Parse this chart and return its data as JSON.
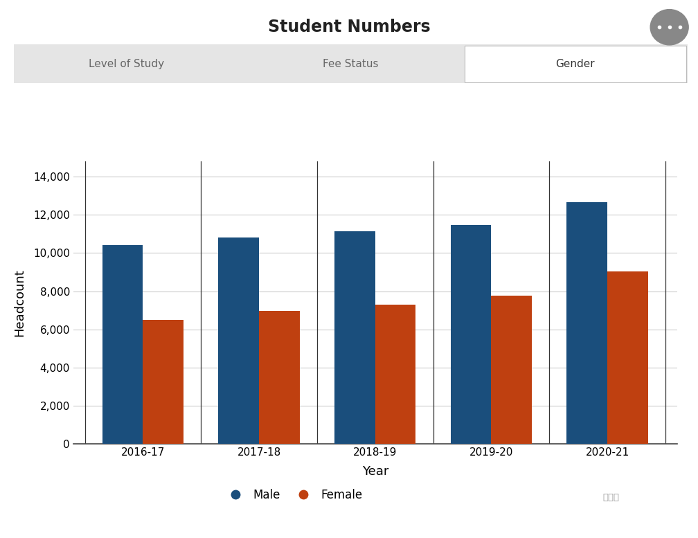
{
  "title": "Student Numbers",
  "years": [
    "2016-17",
    "2017-18",
    "2018-19",
    "2019-20",
    "2020-21"
  ],
  "male_values": [
    10400,
    10800,
    11150,
    11450,
    12650
  ],
  "female_values": [
    6500,
    6950,
    7300,
    7750,
    9050
  ],
  "male_color": "#1a4e7c",
  "female_color": "#bf4010",
  "xlabel": "Year",
  "ylabel": "Headcount",
  "ylim": [
    0,
    14800
  ],
  "yticks": [
    0,
    2000,
    4000,
    6000,
    8000,
    10000,
    12000,
    14000
  ],
  "title_fontsize": 17,
  "axis_fontsize": 12,
  "tick_fontsize": 11,
  "legend_fontsize": 12,
  "tab_labels": [
    "Level of Study",
    "Fee Status",
    "Gender"
  ],
  "tab_active": 2,
  "background_color": "#ffffff",
  "tab_bg": "#e5e5e5",
  "tab_active_bg": "#ffffff",
  "bar_width": 0.35
}
